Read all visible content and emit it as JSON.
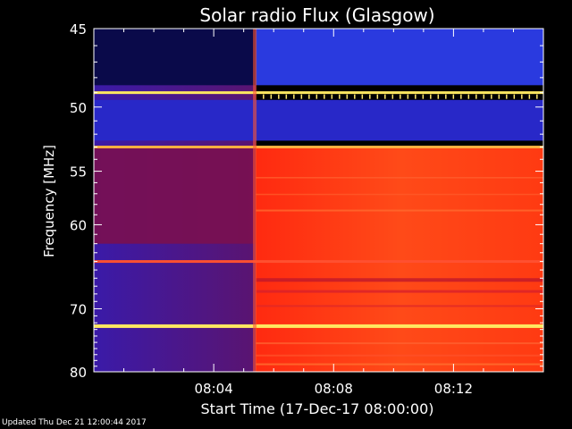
{
  "chart_data": {
    "type": "heatmap",
    "title": "Solar radio Flux (Glasgow)",
    "xlabel": "Start Time (17-Dec-17 08:00:00)",
    "ylabel": "Frequency [MHz]",
    "x_ticks": [
      "08:04",
      "08:08",
      "08:12"
    ],
    "x_tick_minutes": [
      4,
      8,
      12
    ],
    "xlim_minutes": [
      0,
      15
    ],
    "y_ticks": [
      45,
      50,
      55,
      60,
      70,
      80
    ],
    "ylim": [
      45,
      80
    ],
    "y_scale": "reciprocal",
    "burst_onset_minute": 5.4,
    "colors": {
      "low": "#2b1cc8",
      "mid": "#8a1040",
      "high": "#ff3010",
      "peak": "#ffe860"
    },
    "bright_bands_mhz": [
      49,
      53,
      64,
      72.5
    ]
  },
  "footer": "Updated Thu Dec 21 12:00:44 2017"
}
